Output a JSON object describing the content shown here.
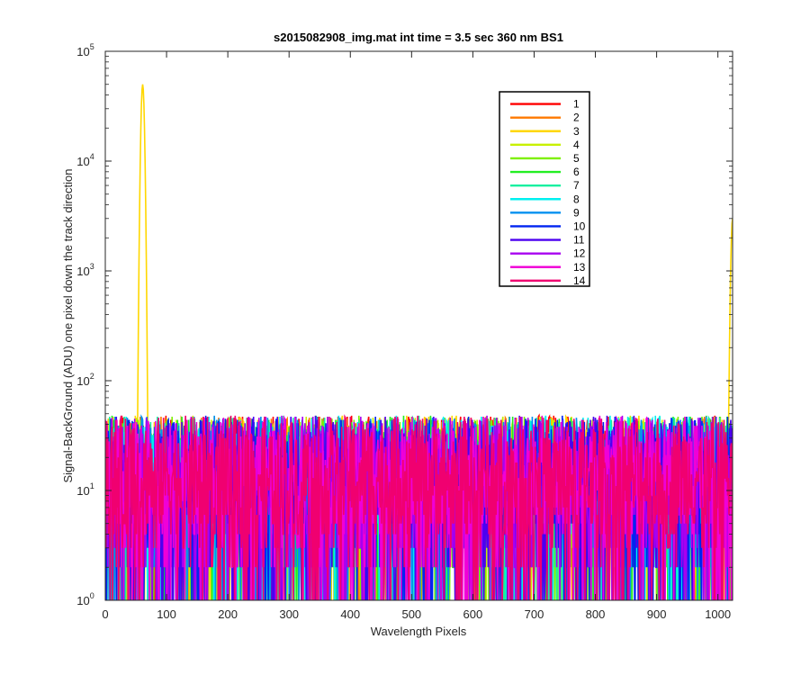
{
  "chart_data": {
    "type": "line",
    "title": "s2015082908_img.mat int time = 3.5 sec  360 nm BS1",
    "xlabel": "Wavelength Pixels",
    "ylabel": "Signal-BackGround (ADU) one pixel down the track direction",
    "xlim": [
      0,
      1024
    ],
    "ylim": [
      1,
      100000
    ],
    "yscale": "log",
    "x_ticks": [
      "0",
      "100",
      "200",
      "300",
      "400",
      "500",
      "600",
      "700",
      "800",
      "900",
      "1000"
    ],
    "x_tick_values": [
      0,
      100,
      200,
      300,
      400,
      500,
      600,
      700,
      800,
      900,
      1000
    ],
    "y_ticks": [
      {
        "base": "10",
        "exp": "0",
        "value": 1
      },
      {
        "base": "10",
        "exp": "1",
        "value": 10
      },
      {
        "base": "10",
        "exp": "2",
        "value": 100
      },
      {
        "base": "10",
        "exp": "3",
        "value": 1000
      },
      {
        "base": "10",
        "exp": "4",
        "value": 10000
      },
      {
        "base": "10",
        "exp": "5",
        "value": 100000
      }
    ],
    "grid": false,
    "legend_position": "top-right",
    "noise_floor_range": [
      1,
      60
    ],
    "series": [
      {
        "name": "1",
        "color": "#ff0000"
      },
      {
        "name": "2",
        "color": "#ff7a00"
      },
      {
        "name": "3",
        "color": "#ffd700",
        "peaks": [
          {
            "x": 61,
            "y": 50000
          },
          {
            "x": 1024,
            "y": 3000
          }
        ]
      },
      {
        "name": "4",
        "color": "#c8f000"
      },
      {
        "name": "5",
        "color": "#7ef000"
      },
      {
        "name": "6",
        "color": "#22ee22"
      },
      {
        "name": "7",
        "color": "#19f0a0"
      },
      {
        "name": "8",
        "color": "#00f0f0"
      },
      {
        "name": "9",
        "color": "#0090f0"
      },
      {
        "name": "10",
        "color": "#0024f0"
      },
      {
        "name": "11",
        "color": "#4c00f0"
      },
      {
        "name": "12",
        "color": "#a800f0"
      },
      {
        "name": "13",
        "color": "#f000d8"
      },
      {
        "name": "14",
        "color": "#f00070"
      }
    ]
  }
}
